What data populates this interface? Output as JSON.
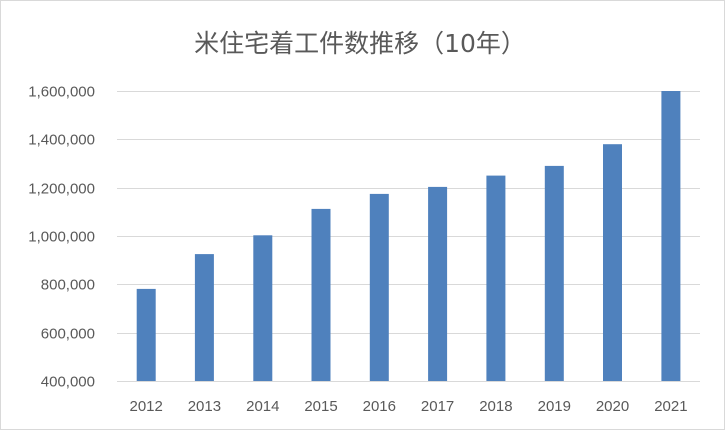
{
  "colors": {
    "bar": "#4f81bd",
    "grid": "#d9d9d9",
    "text": "#595959"
  },
  "chart_data": {
    "type": "bar",
    "title": "米住宅着工件数推移（10年）",
    "xlabel": "",
    "ylabel": "",
    "categories": [
      "2012",
      "2013",
      "2014",
      "2015",
      "2016",
      "2017",
      "2018",
      "2019",
      "2020",
      "2021"
    ],
    "values": [
      781000,
      925000,
      1003000,
      1112000,
      1174000,
      1203000,
      1250000,
      1290000,
      1380000,
      1601000
    ],
    "ylim": [
      400000,
      1600000
    ],
    "yticks": [
      400000,
      600000,
      800000,
      1000000,
      1200000,
      1400000,
      1600000
    ],
    "ytick_labels": [
      "400,000",
      "600,000",
      "800,000",
      "1,000,000",
      "1,200,000",
      "1,400,000",
      "1,600,000"
    ],
    "grid": true,
    "legend": "none"
  }
}
